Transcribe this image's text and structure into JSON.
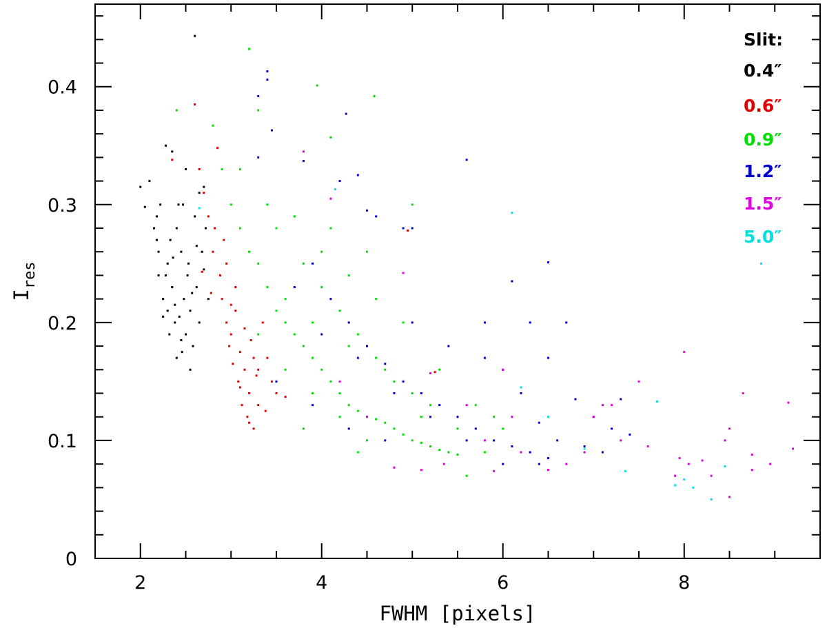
{
  "chart_data": {
    "type": "scatter",
    "xlabel": "FWHM [pixels]",
    "ylabel": {
      "main": "I",
      "sub": "res"
    },
    "xlim": [
      1.5,
      9.5
    ],
    "ylim": [
      0,
      0.47
    ],
    "x_ticks": [
      2,
      4,
      6,
      8
    ],
    "x_tick_labels": [
      "2",
      "4",
      "6",
      "8"
    ],
    "y_ticks": [
      0,
      0.1,
      0.2,
      0.3,
      0.4
    ],
    "y_tick_labels": [
      "0",
      "0.1",
      "0.2",
      "0.3",
      "0.4"
    ],
    "grid": false,
    "legend": {
      "title": "Slit:",
      "placement": "top-right",
      "entries": [
        {
          "label": "0.4″",
          "color": "#000000"
        },
        {
          "label": "0.6″",
          "color": "#e00000"
        },
        {
          "label": "0.9″",
          "color": "#00e000"
        },
        {
          "label": "1.2″",
          "color": "#0000d0"
        },
        {
          "label": "1.5″",
          "color": "#e000e0"
        },
        {
          "label": "5.0″",
          "color": "#00e0e0"
        }
      ]
    },
    "series": [
      {
        "name": "0.4″",
        "color": "#000000",
        "points": [
          [
            2.0,
            0.315
          ],
          [
            2.05,
            0.298
          ],
          [
            2.1,
            0.32
          ],
          [
            2.15,
            0.28
          ],
          [
            2.18,
            0.27
          ],
          [
            2.2,
            0.26
          ],
          [
            2.2,
            0.24
          ],
          [
            2.22,
            0.3
          ],
          [
            2.25,
            0.22
          ],
          [
            2.28,
            0.35
          ],
          [
            2.3,
            0.21
          ],
          [
            2.3,
            0.25
          ],
          [
            2.32,
            0.19
          ],
          [
            2.35,
            0.345
          ],
          [
            2.35,
            0.23
          ],
          [
            2.38,
            0.2
          ],
          [
            2.4,
            0.28
          ],
          [
            2.4,
            0.17
          ],
          [
            2.42,
            0.3
          ],
          [
            2.45,
            0.185
          ],
          [
            2.45,
            0.26
          ],
          [
            2.48,
            0.22
          ],
          [
            2.5,
            0.33
          ],
          [
            2.5,
            0.19
          ],
          [
            2.52,
            0.24
          ],
          [
            2.55,
            0.21
          ],
          [
            2.55,
            0.16
          ],
          [
            2.58,
            0.18
          ],
          [
            2.6,
            0.443
          ],
          [
            2.6,
            0.29
          ],
          [
            2.62,
            0.23
          ],
          [
            2.65,
            0.31
          ],
          [
            2.65,
            0.2
          ],
          [
            2.68,
            0.26
          ],
          [
            2.7,
            0.315
          ],
          [
            2.7,
            0.245
          ],
          [
            2.72,
            0.28
          ],
          [
            2.75,
            0.22
          ],
          [
            2.28,
            0.24
          ],
          [
            2.38,
            0.215
          ],
          [
            2.46,
            0.175
          ],
          [
            2.33,
            0.27
          ],
          [
            2.43,
            0.205
          ],
          [
            2.53,
            0.25
          ],
          [
            2.25,
            0.205
          ],
          [
            2.36,
            0.255
          ],
          [
            2.57,
            0.225
          ],
          [
            2.47,
            0.3
          ],
          [
            2.62,
            0.265
          ],
          [
            2.18,
            0.29
          ]
        ]
      },
      {
        "name": "0.6″",
        "color": "#e00000",
        "points": [
          [
            2.35,
            0.338
          ],
          [
            2.6,
            0.385
          ],
          [
            2.65,
            0.33
          ],
          [
            2.7,
            0.31
          ],
          [
            2.75,
            0.29
          ],
          [
            2.8,
            0.26
          ],
          [
            2.85,
            0.348
          ],
          [
            2.88,
            0.24
          ],
          [
            2.9,
            0.22
          ],
          [
            2.95,
            0.2
          ],
          [
            2.98,
            0.18
          ],
          [
            3.0,
            0.19
          ],
          [
            3.02,
            0.165
          ],
          [
            3.05,
            0.21
          ],
          [
            3.08,
            0.15
          ],
          [
            3.1,
            0.175
          ],
          [
            3.12,
            0.13
          ],
          [
            3.15,
            0.16
          ],
          [
            3.18,
            0.12
          ],
          [
            3.2,
            0.14
          ],
          [
            3.22,
            0.185
          ],
          [
            3.25,
            0.11
          ],
          [
            3.28,
            0.155
          ],
          [
            3.3,
            0.13
          ],
          [
            3.35,
            0.2
          ],
          [
            3.4,
            0.17
          ],
          [
            3.45,
            0.15
          ],
          [
            3.5,
            0.14
          ],
          [
            2.95,
            0.25
          ],
          [
            3.05,
            0.23
          ],
          [
            3.15,
            0.195
          ],
          [
            3.25,
            0.17
          ],
          [
            2.82,
            0.28
          ],
          [
            2.92,
            0.27
          ],
          [
            3.1,
            0.145
          ],
          [
            3.3,
            0.16
          ],
          [
            3.38,
            0.125
          ],
          [
            2.78,
            0.225
          ],
          [
            3.0,
            0.215
          ],
          [
            3.2,
            0.115
          ],
          [
            4.95,
            0.278
          ],
          [
            5.25,
            0.158
          ],
          [
            3.6,
            0.137
          ],
          [
            2.68,
            0.243
          ]
        ]
      },
      {
        "name": "0.9″",
        "color": "#00e000",
        "points": [
          [
            2.4,
            0.38
          ],
          [
            2.8,
            0.367
          ],
          [
            3.2,
            0.432
          ],
          [
            3.3,
            0.38
          ],
          [
            3.95,
            0.401
          ],
          [
            4.58,
            0.392
          ],
          [
            4.1,
            0.357
          ],
          [
            2.9,
            0.33
          ],
          [
            3.0,
            0.3
          ],
          [
            3.1,
            0.28
          ],
          [
            3.2,
            0.26
          ],
          [
            3.3,
            0.25
          ],
          [
            3.4,
            0.23
          ],
          [
            3.5,
            0.21
          ],
          [
            3.6,
            0.2
          ],
          [
            3.7,
            0.19
          ],
          [
            3.8,
            0.18
          ],
          [
            3.9,
            0.17
          ],
          [
            4.0,
            0.16
          ],
          [
            4.1,
            0.15
          ],
          [
            4.2,
            0.14
          ],
          [
            4.3,
            0.13
          ],
          [
            4.4,
            0.125
          ],
          [
            4.5,
            0.12
          ],
          [
            4.6,
            0.118
          ],
          [
            4.7,
            0.115
          ],
          [
            4.8,
            0.11
          ],
          [
            4.9,
            0.105
          ],
          [
            5.0,
            0.1
          ],
          [
            5.1,
            0.098
          ],
          [
            5.2,
            0.095
          ],
          [
            5.3,
            0.092
          ],
          [
            5.4,
            0.09
          ],
          [
            5.5,
            0.088
          ],
          [
            3.5,
            0.28
          ],
          [
            3.8,
            0.25
          ],
          [
            4.0,
            0.23
          ],
          [
            4.2,
            0.21
          ],
          [
            4.4,
            0.19
          ],
          [
            4.6,
            0.17
          ],
          [
            4.8,
            0.15
          ],
          [
            5.0,
            0.14
          ],
          [
            5.2,
            0.13
          ],
          [
            3.6,
            0.16
          ],
          [
            3.9,
            0.14
          ],
          [
            4.2,
            0.12
          ],
          [
            4.5,
            0.1
          ],
          [
            3.3,
            0.19
          ],
          [
            3.6,
            0.22
          ],
          [
            3.9,
            0.2
          ],
          [
            4.3,
            0.18
          ],
          [
            4.7,
            0.16
          ],
          [
            5.1,
            0.12
          ],
          [
            5.5,
            0.11
          ],
          [
            5.7,
            0.13
          ],
          [
            5.9,
            0.12
          ],
          [
            6.0,
            0.11
          ],
          [
            4.0,
            0.26
          ],
          [
            4.3,
            0.24
          ],
          [
            4.6,
            0.22
          ],
          [
            3.4,
            0.3
          ],
          [
            3.7,
            0.29
          ],
          [
            4.1,
            0.28
          ],
          [
            4.5,
            0.26
          ],
          [
            4.9,
            0.2
          ],
          [
            5.3,
            0.16
          ],
          [
            5.0,
            0.3
          ],
          [
            3.1,
            0.33
          ],
          [
            4.4,
            0.09
          ],
          [
            3.8,
            0.11
          ],
          [
            5.8,
            0.09
          ],
          [
            5.6,
            0.07
          ]
        ]
      },
      {
        "name": "1.2″",
        "color": "#0000d0",
        "points": [
          [
            3.4,
            0.413
          ],
          [
            3.4,
            0.406
          ],
          [
            3.3,
            0.392
          ],
          [
            4.27,
            0.377
          ],
          [
            3.45,
            0.363
          ],
          [
            3.3,
            0.34
          ],
          [
            3.8,
            0.337
          ],
          [
            4.4,
            0.325
          ],
          [
            4.2,
            0.32
          ],
          [
            5.6,
            0.338
          ],
          [
            4.5,
            0.295
          ],
          [
            4.9,
            0.28
          ],
          [
            5.0,
            0.28
          ],
          [
            3.9,
            0.25
          ],
          [
            4.1,
            0.22
          ],
          [
            4.3,
            0.2
          ],
          [
            4.5,
            0.18
          ],
          [
            4.7,
            0.165
          ],
          [
            4.9,
            0.15
          ],
          [
            5.1,
            0.14
          ],
          [
            5.3,
            0.13
          ],
          [
            5.5,
            0.12
          ],
          [
            5.7,
            0.11
          ],
          [
            5.9,
            0.1
          ],
          [
            6.1,
            0.095
          ],
          [
            6.3,
            0.09
          ],
          [
            6.5,
            0.085
          ],
          [
            6.1,
            0.235
          ],
          [
            6.5,
            0.251
          ],
          [
            6.7,
            0.2
          ],
          [
            6.3,
            0.2
          ],
          [
            6.5,
            0.17
          ],
          [
            6.8,
            0.135
          ],
          [
            7.0,
            0.12
          ],
          [
            7.2,
            0.11
          ],
          [
            7.4,
            0.105
          ],
          [
            3.7,
            0.23
          ],
          [
            4.0,
            0.19
          ],
          [
            4.4,
            0.17
          ],
          [
            4.8,
            0.14
          ],
          [
            5.2,
            0.12
          ],
          [
            5.6,
            0.1
          ],
          [
            6.0,
            0.08
          ],
          [
            6.4,
            0.08
          ],
          [
            5.8,
            0.17
          ],
          [
            6.0,
            0.16
          ],
          [
            6.2,
            0.14
          ],
          [
            6.6,
            0.1
          ],
          [
            7.1,
            0.09
          ],
          [
            3.5,
            0.15
          ],
          [
            3.9,
            0.13
          ],
          [
            4.3,
            0.11
          ],
          [
            4.7,
            0.1
          ],
          [
            5.0,
            0.2
          ],
          [
            5.4,
            0.18
          ],
          [
            5.8,
            0.2
          ],
          [
            6.4,
            0.115
          ],
          [
            6.9,
            0.095
          ],
          [
            7.3,
            0.135
          ],
          [
            4.6,
            0.29
          ]
        ]
      },
      {
        "name": "1.5″",
        "color": "#e000e0",
        "points": [
          [
            3.8,
            0.345
          ],
          [
            4.1,
            0.305
          ],
          [
            4.9,
            0.242
          ],
          [
            5.2,
            0.157
          ],
          [
            5.6,
            0.13
          ],
          [
            5.8,
            0.1
          ],
          [
            6.0,
            0.16
          ],
          [
            6.2,
            0.09
          ],
          [
            6.5,
            0.075
          ],
          [
            6.7,
            0.08
          ],
          [
            6.9,
            0.09
          ],
          [
            7.0,
            0.12
          ],
          [
            7.2,
            0.13
          ],
          [
            7.3,
            0.1
          ],
          [
            7.5,
            0.15
          ],
          [
            7.6,
            0.095
          ],
          [
            7.9,
            0.07
          ],
          [
            7.95,
            0.085
          ],
          [
            8.0,
            0.175
          ],
          [
            8.05,
            0.08
          ],
          [
            8.2,
            0.083
          ],
          [
            8.3,
            0.07
          ],
          [
            8.45,
            0.1
          ],
          [
            8.5,
            0.11
          ],
          [
            8.5,
            0.052
          ],
          [
            8.65,
            0.14
          ],
          [
            8.75,
            0.088
          ],
          [
            8.75,
            0.075
          ],
          [
            8.95,
            0.08
          ],
          [
            9.15,
            0.132
          ],
          [
            9.2,
            0.093
          ],
          [
            4.8,
            0.077
          ],
          [
            5.1,
            0.075
          ],
          [
            5.35,
            0.08
          ],
          [
            4.5,
            0.12
          ],
          [
            4.2,
            0.15
          ],
          [
            5.9,
            0.074
          ],
          [
            7.1,
            0.13
          ],
          [
            6.1,
            0.12
          ]
        ]
      },
      {
        "name": "5.0″",
        "color": "#00e0e0",
        "points": [
          [
            2.65,
            0.297
          ],
          [
            4.15,
            0.313
          ],
          [
            6.1,
            0.293
          ],
          [
            6.5,
            0.12
          ],
          [
            6.9,
            0.093
          ],
          [
            7.35,
            0.074
          ],
          [
            7.7,
            0.133
          ],
          [
            8.1,
            0.06
          ],
          [
            8.3,
            0.05
          ],
          [
            8.45,
            0.078
          ],
          [
            8.85,
            0.25
          ],
          [
            8.0,
            0.067
          ],
          [
            6.2,
            0.145
          ],
          [
            7.9,
            0.062
          ]
        ]
      }
    ]
  }
}
